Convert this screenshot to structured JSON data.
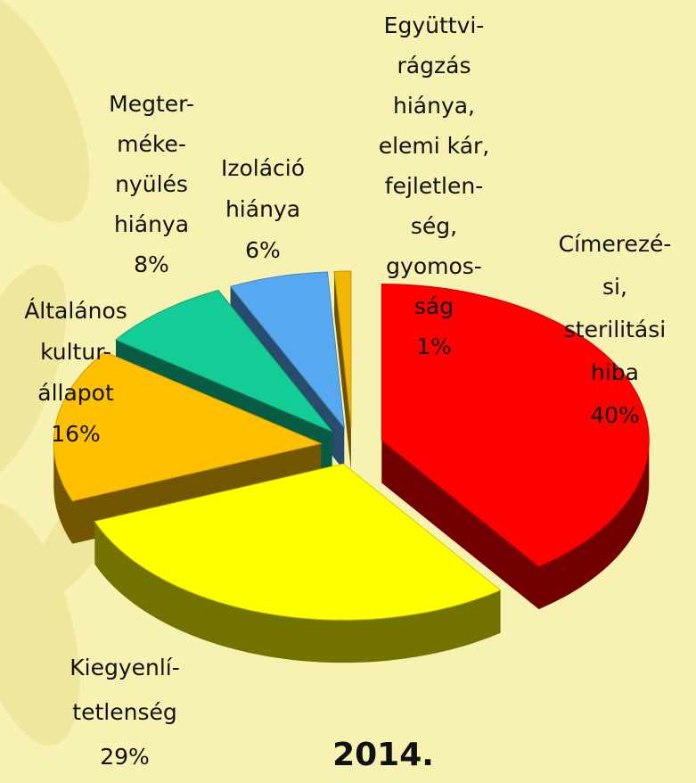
{
  "chart_data": {
    "type": "pie",
    "title": "2014.",
    "categories": [
      [
        "Címerezé-",
        "si,",
        "sterilitási",
        "hiba"
      ],
      [
        "Kiegyenlí-",
        "tetlenség"
      ],
      [
        "Általános",
        "kultur-",
        "állapot"
      ],
      [
        "Megter-",
        "méke-",
        "nyülés",
        "hiánya"
      ],
      [
        "Izoláció",
        "hiánya"
      ],
      [
        "Együttvi-",
        "rágzás",
        "hiánya,",
        "elemi kár,",
        "fejletlen-",
        "ség,",
        "gyomos-",
        "ság"
      ]
    ],
    "values": [
      40,
      29,
      16,
      8,
      6,
      1
    ],
    "value_labels": [
      "40%",
      "29%",
      "16%",
      "8%",
      "6%",
      "1%"
    ],
    "colors": [
      "#ff0000",
      "#ffff00",
      "#ffc000",
      "#14cc96",
      "#56a8f0",
      "#f2b705"
    ]
  }
}
